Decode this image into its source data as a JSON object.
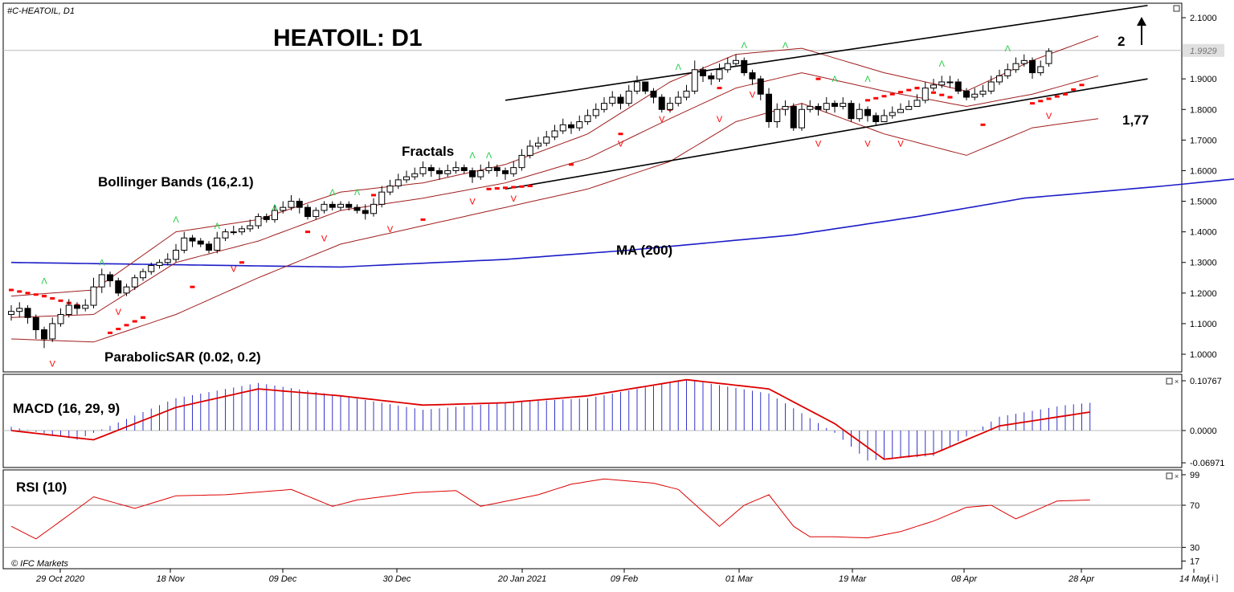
{
  "app": {
    "symbol_label": "#C-HEATOIL, D1",
    "copyright": "© IFC Markets",
    "corner_button": "[ i ]"
  },
  "colors": {
    "bull": "#ffffff",
    "bear": "#000000",
    "ma": "#1c1cc8",
    "bands": "#a01e1e",
    "sar": "#ff0000",
    "fractal_up": "#22cc44",
    "fractal_down": "#ff0000",
    "macd_hist": "#3333cc",
    "macd_signal": "#dd0000",
    "rsi": "#dd0000",
    "trend": "#000000"
  },
  "annotations": {
    "title": "HEATOIL: D1",
    "bollinger": "Bollinger Bands (16,2.1)",
    "fractals": "Fractals",
    "parabolic": "ParabolicSAR (0.02, 0.2)",
    "ma": "MA (200)",
    "level_2": "2",
    "level_177": "1,77",
    "macd": "MACD (16, 29, 9)",
    "rsi": "RSI (10)"
  },
  "chart_data": [
    {
      "type": "candlestick",
      "title": "HEATOIL: D1",
      "x_ticks": [
        "29 Oct 2020",
        "18 Nov",
        "09 Dec",
        "30 Dec",
        "20 Jan 2021",
        "09 Feb",
        "01 Mar",
        "19 Mar",
        "08 Apr",
        "28 Apr",
        "14 May"
      ],
      "y_ticks": [
        "2.1000",
        "1.9929",
        "1.9000",
        "1.8000",
        "1.7000",
        "1.6000",
        "1.5000",
        "1.4000",
        "1.3000",
        "1.2000",
        "1.1000",
        "1.0000"
      ],
      "ylim": [
        0.94,
        2.15
      ],
      "last_price": 1.9929,
      "close": [
        1.14,
        1.15,
        1.12,
        1.08,
        1.05,
        1.1,
        1.13,
        1.16,
        1.15,
        1.16,
        1.22,
        1.26,
        1.24,
        1.2,
        1.22,
        1.25,
        1.27,
        1.29,
        1.3,
        1.31,
        1.34,
        1.38,
        1.37,
        1.36,
        1.34,
        1.38,
        1.4,
        1.4,
        1.41,
        1.42,
        1.45,
        1.44,
        1.47,
        1.48,
        1.5,
        1.48,
        1.45,
        1.47,
        1.49,
        1.48,
        1.49,
        1.48,
        1.47,
        1.46,
        1.49,
        1.53,
        1.55,
        1.57,
        1.58,
        1.59,
        1.61,
        1.6,
        1.59,
        1.6,
        1.61,
        1.6,
        1.58,
        1.6,
        1.61,
        1.6,
        1.59,
        1.61,
        1.65,
        1.68,
        1.69,
        1.71,
        1.73,
        1.75,
        1.74,
        1.76,
        1.78,
        1.8,
        1.82,
        1.84,
        1.82,
        1.86,
        1.89,
        1.86,
        1.84,
        1.8,
        1.82,
        1.84,
        1.86,
        1.93,
        1.91,
        1.9,
        1.93,
        1.95,
        1.96,
        1.92,
        1.9,
        1.85,
        1.76,
        1.8,
        1.81,
        1.74,
        1.8,
        1.81,
        1.8,
        1.82,
        1.81,
        1.82,
        1.77,
        1.8,
        1.78,
        1.76,
        1.78,
        1.79,
        1.8,
        1.81,
        1.83,
        1.87,
        1.88,
        1.89,
        1.89,
        1.86,
        1.84,
        1.85,
        1.86,
        1.89,
        1.91,
        1.93,
        1.95,
        1.96,
        1.92,
        1.94,
        1.99
      ],
      "open": [
        1.13,
        1.14,
        1.15,
        1.12,
        1.08,
        1.05,
        1.1,
        1.13,
        1.16,
        1.15,
        1.16,
        1.22,
        1.26,
        1.24,
        1.2,
        1.22,
        1.25,
        1.27,
        1.29,
        1.3,
        1.31,
        1.34,
        1.38,
        1.37,
        1.36,
        1.34,
        1.38,
        1.4,
        1.4,
        1.41,
        1.42,
        1.45,
        1.44,
        1.47,
        1.48,
        1.5,
        1.48,
        1.45,
        1.47,
        1.49,
        1.48,
        1.49,
        1.48,
        1.47,
        1.46,
        1.49,
        1.53,
        1.55,
        1.57,
        1.58,
        1.59,
        1.61,
        1.6,
        1.59,
        1.6,
        1.61,
        1.6,
        1.58,
        1.6,
        1.61,
        1.6,
        1.59,
        1.61,
        1.65,
        1.68,
        1.69,
        1.71,
        1.73,
        1.75,
        1.74,
        1.76,
        1.78,
        1.8,
        1.82,
        1.84,
        1.82,
        1.86,
        1.89,
        1.86,
        1.84,
        1.8,
        1.82,
        1.84,
        1.86,
        1.93,
        1.91,
        1.9,
        1.93,
        1.95,
        1.96,
        1.92,
        1.9,
        1.85,
        1.76,
        1.8,
        1.81,
        1.74,
        1.8,
        1.81,
        1.8,
        1.82,
        1.81,
        1.82,
        1.77,
        1.8,
        1.78,
        1.76,
        1.78,
        1.79,
        1.8,
        1.81,
        1.83,
        1.87,
        1.88,
        1.89,
        1.89,
        1.86,
        1.84,
        1.85,
        1.86,
        1.89,
        1.91,
        1.93,
        1.95,
        1.96,
        1.92,
        1.95
      ],
      "high": [
        1.16,
        1.17,
        1.16,
        1.13,
        1.09,
        1.12,
        1.15,
        1.18,
        1.17,
        1.18,
        1.25,
        1.28,
        1.27,
        1.25,
        1.23,
        1.26,
        1.28,
        1.3,
        1.31,
        1.33,
        1.36,
        1.4,
        1.39,
        1.38,
        1.37,
        1.4,
        1.41,
        1.42,
        1.42,
        1.44,
        1.46,
        1.46,
        1.49,
        1.5,
        1.52,
        1.51,
        1.49,
        1.48,
        1.5,
        1.5,
        1.5,
        1.5,
        1.49,
        1.49,
        1.51,
        1.55,
        1.57,
        1.59,
        1.6,
        1.61,
        1.63,
        1.62,
        1.61,
        1.62,
        1.63,
        1.62,
        1.61,
        1.62,
        1.63,
        1.62,
        1.61,
        1.63,
        1.67,
        1.7,
        1.71,
        1.73,
        1.75,
        1.77,
        1.76,
        1.78,
        1.8,
        1.82,
        1.84,
        1.86,
        1.85,
        1.88,
        1.91,
        1.89,
        1.87,
        1.85,
        1.84,
        1.86,
        1.88,
        1.96,
        1.94,
        1.92,
        1.95,
        1.97,
        1.98,
        1.97,
        1.93,
        1.91,
        1.87,
        1.82,
        1.83,
        1.82,
        1.82,
        1.83,
        1.82,
        1.84,
        1.83,
        1.84,
        1.83,
        1.82,
        1.81,
        1.79,
        1.8,
        1.81,
        1.82,
        1.83,
        1.85,
        1.89,
        1.9,
        1.91,
        1.91,
        1.9,
        1.87,
        1.87,
        1.88,
        1.91,
        1.93,
        1.95,
        1.97,
        1.98,
        1.97,
        1.96,
        2.0
      ],
      "low": [
        1.11,
        1.12,
        1.1,
        1.05,
        1.02,
        1.04,
        1.09,
        1.12,
        1.13,
        1.14,
        1.15,
        1.2,
        1.22,
        1.19,
        1.19,
        1.21,
        1.24,
        1.26,
        1.28,
        1.29,
        1.3,
        1.33,
        1.35,
        1.35,
        1.33,
        1.33,
        1.37,
        1.39,
        1.39,
        1.4,
        1.41,
        1.43,
        1.43,
        1.46,
        1.47,
        1.46,
        1.44,
        1.44,
        1.46,
        1.47,
        1.47,
        1.47,
        1.46,
        1.44,
        1.45,
        1.48,
        1.52,
        1.54,
        1.56,
        1.57,
        1.58,
        1.58,
        1.57,
        1.58,
        1.59,
        1.59,
        1.56,
        1.57,
        1.59,
        1.58,
        1.57,
        1.58,
        1.6,
        1.64,
        1.67,
        1.68,
        1.7,
        1.72,
        1.72,
        1.73,
        1.75,
        1.77,
        1.79,
        1.81,
        1.8,
        1.81,
        1.85,
        1.85,
        1.82,
        1.79,
        1.79,
        1.81,
        1.83,
        1.85,
        1.89,
        1.88,
        1.89,
        1.92,
        1.94,
        1.91,
        1.88,
        1.83,
        1.74,
        1.74,
        1.78,
        1.73,
        1.73,
        1.79,
        1.78,
        1.79,
        1.79,
        1.8,
        1.76,
        1.76,
        1.76,
        1.75,
        1.76,
        1.77,
        1.79,
        1.8,
        1.81,
        1.82,
        1.86,
        1.87,
        1.87,
        1.85,
        1.83,
        1.83,
        1.84,
        1.85,
        1.88,
        1.9,
        1.92,
        1.94,
        1.9,
        1.91,
        1.94
      ],
      "ma200": [
        [
          0,
          1.3
        ],
        [
          40,
          1.285
        ],
        [
          60,
          1.31
        ],
        [
          75,
          1.34
        ],
        [
          95,
          1.39
        ],
        [
          110,
          1.45
        ],
        [
          123,
          1.51
        ],
        [
          140,
          1.55
        ],
        [
          155,
          1.59
        ],
        [
          162,
          1.61
        ]
      ],
      "bollinger_upper": [
        [
          0,
          1.19
        ],
        [
          10,
          1.21
        ],
        [
          20,
          1.4
        ],
        [
          30,
          1.44
        ],
        [
          40,
          1.53
        ],
        [
          50,
          1.56
        ],
        [
          60,
          1.62
        ],
        [
          70,
          1.72
        ],
        [
          80,
          1.89
        ],
        [
          88,
          1.98
        ],
        [
          96,
          2.0
        ],
        [
          106,
          1.92
        ],
        [
          116,
          1.86
        ],
        [
          124,
          1.96
        ],
        [
          132,
          2.04
        ]
      ],
      "bollinger_middle": [
        [
          0,
          1.12
        ],
        [
          10,
          1.13
        ],
        [
          20,
          1.3
        ],
        [
          30,
          1.37
        ],
        [
          40,
          1.47
        ],
        [
          50,
          1.51
        ],
        [
          60,
          1.56
        ],
        [
          70,
          1.64
        ],
        [
          80,
          1.77
        ],
        [
          88,
          1.87
        ],
        [
          96,
          1.92
        ],
        [
          106,
          1.86
        ],
        [
          116,
          1.81
        ],
        [
          124,
          1.85
        ],
        [
          132,
          1.91
        ]
      ],
      "bollinger_lower": [
        [
          0,
          1.05
        ],
        [
          10,
          1.04
        ],
        [
          20,
          1.13
        ],
        [
          30,
          1.25
        ],
        [
          40,
          1.36
        ],
        [
          50,
          1.42
        ],
        [
          60,
          1.48
        ],
        [
          70,
          1.54
        ],
        [
          80,
          1.63
        ],
        [
          88,
          1.76
        ],
        [
          96,
          1.82
        ],
        [
          106,
          1.72
        ],
        [
          116,
          1.65
        ],
        [
          124,
          1.74
        ],
        [
          132,
          1.77
        ]
      ],
      "parabolic_sar": [
        [
          0,
          1.21
        ],
        [
          4,
          1.19
        ],
        [
          8,
          1.16
        ],
        [
          12,
          1.07
        ],
        [
          16,
          1.12
        ],
        [
          22,
          1.22
        ],
        [
          28,
          1.3
        ],
        [
          36,
          1.4
        ],
        [
          44,
          1.52
        ],
        [
          50,
          1.44
        ],
        [
          58,
          1.54
        ],
        [
          63,
          1.55
        ],
        [
          68,
          1.62
        ],
        [
          74,
          1.72
        ],
        [
          80,
          1.8
        ],
        [
          86,
          1.87
        ],
        [
          92,
          1.8
        ],
        [
          98,
          1.9
        ],
        [
          104,
          1.83
        ],
        [
          110,
          1.87
        ],
        [
          114,
          1.84
        ],
        [
          118,
          1.75
        ],
        [
          124,
          1.82
        ],
        [
          128,
          1.85
        ],
        [
          130,
          1.88
        ]
      ],
      "fractals_up": [
        [
          4,
          1.23
        ],
        [
          11,
          1.29
        ],
        [
          20,
          1.43
        ],
        [
          25,
          1.41
        ],
        [
          32,
          1.47
        ],
        [
          39,
          1.52
        ],
        [
          42,
          1.52
        ],
        [
          56,
          1.64
        ],
        [
          58,
          1.64
        ],
        [
          81,
          1.93
        ],
        [
          89,
          2.0
        ],
        [
          94,
          2.0
        ],
        [
          100,
          1.89
        ],
        [
          104,
          1.89
        ],
        [
          113,
          1.94
        ],
        [
          121,
          1.99
        ]
      ],
      "fractals_down": [
        [
          5,
          0.98
        ],
        [
          13,
          1.15
        ],
        [
          27,
          1.29
        ],
        [
          38,
          1.39
        ],
        [
          46,
          1.42
        ],
        [
          56,
          1.51
        ],
        [
          61,
          1.52
        ],
        [
          74,
          1.7
        ],
        [
          79,
          1.78
        ],
        [
          86,
          1.78
        ],
        [
          90,
          1.86
        ],
        [
          98,
          1.7
        ],
        [
          104,
          1.7
        ],
        [
          108,
          1.7
        ],
        [
          126,
          1.79
        ]
      ],
      "trendlines": [
        {
          "from": [
            60,
            1.83
          ],
          "to": [
            138,
            2.14
          ]
        },
        {
          "from": [
            60,
            1.54
          ],
          "to": [
            138,
            1.9
          ]
        }
      ]
    },
    {
      "type": "bar",
      "title": "MACD (16, 29, 9)",
      "y_ticks": [
        "0.10767",
        "0.0000",
        "-0.06971"
      ],
      "ylim": [
        -0.0697,
        0.1077
      ],
      "histogram_knots": [
        [
          0,
          0.008
        ],
        [
          8,
          -0.02
        ],
        [
          20,
          0.07
        ],
        [
          30,
          0.103
        ],
        [
          40,
          0.075
        ],
        [
          50,
          0.045
        ],
        [
          60,
          0.06
        ],
        [
          70,
          0.07
        ],
        [
          82,
          0.11
        ],
        [
          92,
          0.08
        ],
        [
          100,
          -0.005
        ],
        [
          104,
          -0.065
        ],
        [
          112,
          -0.055
        ],
        [
          120,
          0.03
        ],
        [
          128,
          0.055
        ],
        [
          131,
          0.06
        ]
      ],
      "signal_knots": [
        [
          0,
          0.0
        ],
        [
          10,
          -0.02
        ],
        [
          20,
          0.05
        ],
        [
          30,
          0.09
        ],
        [
          40,
          0.075
        ],
        [
          50,
          0.055
        ],
        [
          60,
          0.06
        ],
        [
          70,
          0.075
        ],
        [
          82,
          0.11
        ],
        [
          92,
          0.09
        ],
        [
          100,
          0.015
        ],
        [
          106,
          -0.062
        ],
        [
          112,
          -0.05
        ],
        [
          120,
          0.01
        ],
        [
          131,
          0.04
        ]
      ]
    },
    {
      "type": "line",
      "title": "RSI (10)",
      "y_ticks": [
        "99",
        "70",
        "30",
        "17"
      ],
      "ylim": [
        17,
        99
      ],
      "rsi_knots": [
        [
          0,
          50
        ],
        [
          3,
          38
        ],
        [
          6,
          55
        ],
        [
          10,
          78
        ],
        [
          15,
          67
        ],
        [
          20,
          79
        ],
        [
          26,
          80
        ],
        [
          34,
          85
        ],
        [
          39,
          69
        ],
        [
          42,
          75
        ],
        [
          49,
          82
        ],
        [
          54,
          84
        ],
        [
          57,
          69
        ],
        [
          64,
          80
        ],
        [
          68,
          90
        ],
        [
          72,
          95
        ],
        [
          78,
          91
        ],
        [
          81,
          85
        ],
        [
          86,
          50
        ],
        [
          89,
          70
        ],
        [
          92,
          80
        ],
        [
          95,
          50
        ],
        [
          97,
          40
        ],
        [
          100,
          40
        ],
        [
          104,
          39
        ],
        [
          108,
          45
        ],
        [
          112,
          55
        ],
        [
          116,
          68
        ],
        [
          119,
          70
        ],
        [
          122,
          57
        ],
        [
          127,
          74
        ],
        [
          131,
          75
        ]
      ]
    }
  ]
}
